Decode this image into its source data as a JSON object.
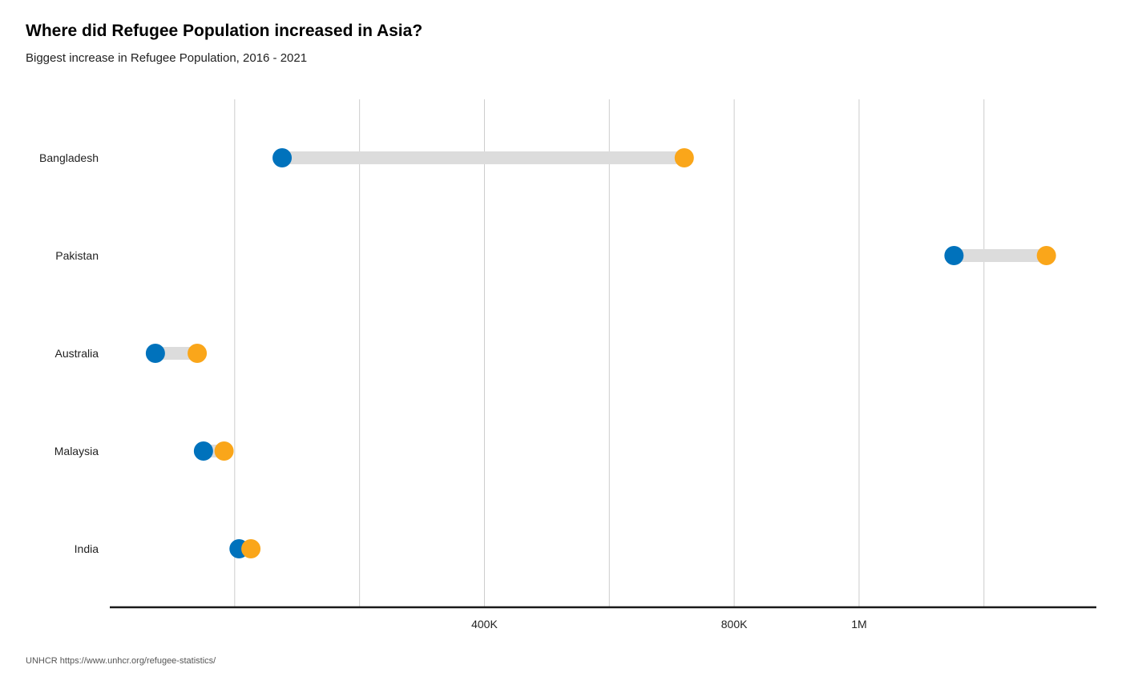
{
  "header": {
    "title": "Where did Refugee Population increased in Asia?",
    "subtitle": "Biggest increase in Refugee Population, 2016 - 2021"
  },
  "footer": {
    "caption": "UNHCR https://www.unhcr.org/refugee-statistics/"
  },
  "colors": {
    "start": "#0072BC",
    "end": "#FAA61A",
    "connector": "#DCDCDC",
    "grid": "#CCCCCC",
    "axis": "#1a1a1a"
  },
  "chart_data": {
    "type": "dumbbell",
    "title": "Where did Refugee Population increased in Asia?",
    "subtitle": "Biggest increase in Refugee Population, 2016 - 2021",
    "xlim": [
      -200000,
      1380000
    ],
    "grid_values": [
      0,
      200000,
      400000,
      600000,
      800000,
      1000000,
      1200000
    ],
    "ticks": [
      {
        "value": 400000,
        "label": "400K"
      },
      {
        "value": 800000,
        "label": "800K"
      },
      {
        "value": 1000000,
        "label": "1M"
      }
    ],
    "categories": [
      "Bangladesh",
      "Pakistan",
      "Australia",
      "Malaysia",
      "India"
    ],
    "series": [
      {
        "values": [
          76000,
          1152000,
          -127000,
          -50000,
          7000
        ]
      },
      {
        "values": [
          720000,
          1300000,
          -60000,
          -17000,
          26000
        ]
      }
    ]
  }
}
